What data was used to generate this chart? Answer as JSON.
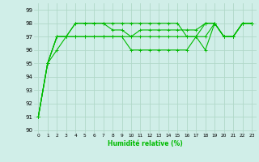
{
  "xlabel": "Humidité relative (%)",
  "bg_color": "#d0eee8",
  "grid_color": "#b0d8c8",
  "line_color": "#00bb00",
  "xlim": [
    -0.5,
    23.5
  ],
  "ylim": [
    89.8,
    99.5
  ],
  "yticks": [
    90,
    91,
    92,
    93,
    94,
    95,
    96,
    97,
    98,
    99
  ],
  "xticks": [
    0,
    1,
    2,
    3,
    4,
    5,
    6,
    7,
    8,
    9,
    10,
    11,
    12,
    13,
    14,
    15,
    16,
    17,
    18,
    19,
    20,
    21,
    22,
    23
  ],
  "series": [
    [
      91,
      95,
      97,
      97,
      98,
      98,
      98,
      98,
      98,
      98,
      98,
      98,
      98,
      98,
      98,
      98,
      97,
      97,
      98,
      98,
      97,
      97,
      98,
      98
    ],
    [
      91,
      95,
      97,
      97,
      97,
      97,
      97,
      97,
      97,
      97,
      97,
      97,
      97,
      97,
      97,
      97,
      97,
      97,
      97,
      98,
      97,
      97,
      98,
      98
    ],
    [
      91,
      95,
      97,
      97,
      98,
      98,
      98,
      98,
      97.5,
      97.5,
      97,
      97.5,
      97.5,
      97.5,
      97.5,
      97.5,
      97.5,
      97.5,
      98,
      98,
      97,
      97,
      98,
      98
    ],
    [
      91,
      95,
      96,
      97,
      97,
      97,
      97,
      97,
      97,
      97,
      96,
      96,
      96,
      96,
      96,
      96,
      96,
      97,
      96,
      98,
      97,
      97,
      98,
      98
    ]
  ]
}
